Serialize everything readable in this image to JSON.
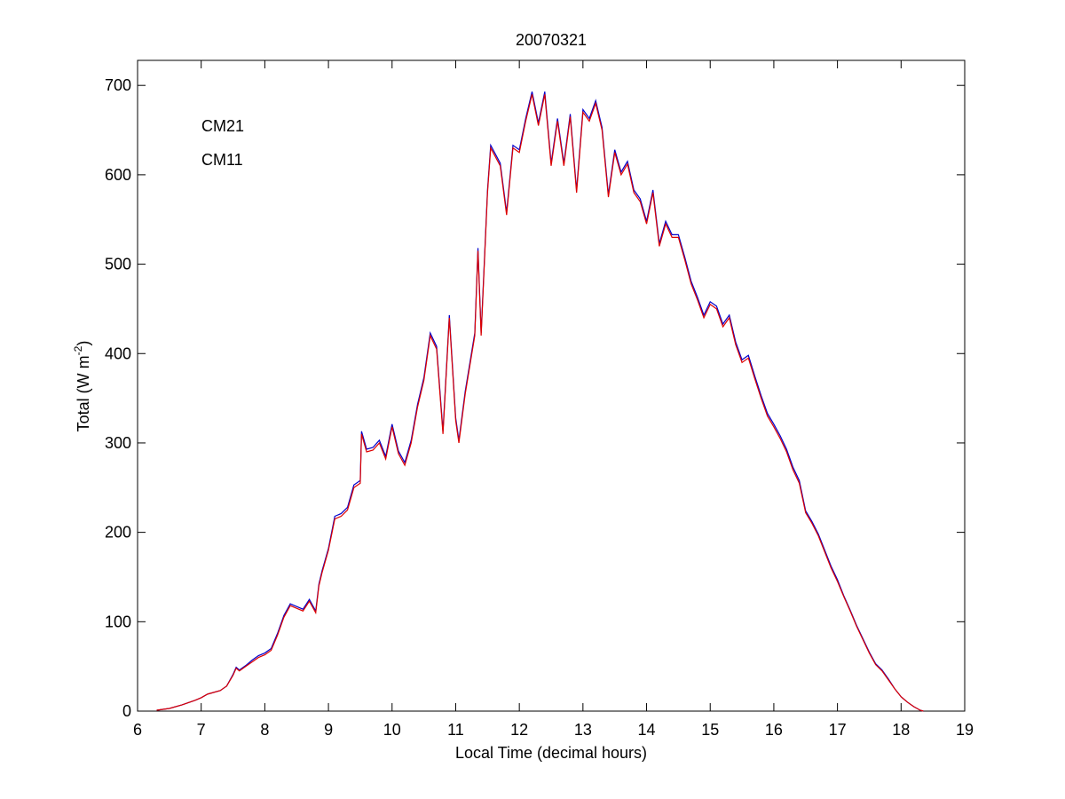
{
  "chart_data": {
    "type": "line",
    "title": "20070321",
    "xlabel": "Local Time (decimal hours)",
    "ylabel": [
      "Total (W m",
      "-2",
      ")"
    ],
    "x": [
      6.3,
      6.5,
      6.7,
      6.9,
      7.0,
      7.1,
      7.3,
      7.4,
      7.5,
      7.55,
      7.6,
      7.7,
      7.8,
      7.9,
      8.0,
      8.1,
      8.2,
      8.3,
      8.4,
      8.5,
      8.6,
      8.7,
      8.8,
      8.85,
      8.9,
      9.0,
      9.1,
      9.2,
      9.3,
      9.4,
      9.5,
      9.52,
      9.6,
      9.7,
      9.8,
      9.9,
      10.0,
      10.1,
      10.2,
      10.3,
      10.4,
      10.5,
      10.6,
      10.7,
      10.8,
      10.9,
      11.0,
      11.05,
      11.15,
      11.3,
      11.35,
      11.4,
      11.5,
      11.55,
      11.7,
      11.8,
      11.9,
      12.0,
      12.1,
      12.2,
      12.3,
      12.4,
      12.5,
      12.6,
      12.7,
      12.8,
      12.9,
      13.0,
      13.1,
      13.2,
      13.3,
      13.4,
      13.5,
      13.6,
      13.7,
      13.8,
      13.9,
      14.0,
      14.1,
      14.2,
      14.3,
      14.4,
      14.5,
      14.6,
      14.7,
      14.8,
      14.9,
      15.0,
      15.1,
      15.2,
      15.3,
      15.4,
      15.5,
      15.6,
      15.7,
      15.8,
      15.9,
      16.0,
      16.1,
      16.2,
      16.3,
      16.4,
      16.5,
      16.6,
      16.7,
      16.8,
      16.9,
      17.0,
      17.1,
      17.2,
      17.3,
      17.4,
      17.5,
      17.6,
      17.7,
      17.8,
      17.9,
      18.0,
      18.1,
      18.2,
      18.3,
      18.35
    ],
    "series": [
      {
        "name": "CM21",
        "color": "#0000cc",
        "values": [
          1,
          3,
          7,
          12,
          15,
          19,
          23,
          28,
          41,
          49,
          46,
          51,
          57,
          62,
          65,
          70,
          87,
          107,
          120,
          117,
          114,
          125,
          112,
          142,
          157,
          182,
          218,
          221,
          228,
          253,
          258,
          313,
          293,
          295,
          303,
          285,
          321,
          291,
          278,
          303,
          343,
          373,
          423,
          408,
          313,
          443,
          328,
          303,
          358,
          423,
          518,
          423,
          583,
          633,
          613,
          558,
          633,
          628,
          663,
          693,
          658,
          693,
          613,
          663,
          613,
          668,
          583,
          673,
          663,
          683,
          653,
          578,
          628,
          603,
          615,
          583,
          573,
          548,
          583,
          523,
          548,
          533,
          533,
          508,
          481,
          463,
          443,
          458,
          453,
          433,
          443,
          413,
          393,
          398,
          375,
          353,
          333,
          321,
          308,
          293,
          273,
          258,
          224,
          212,
          198,
          180,
          162,
          147,
          129,
          113,
          96,
          81,
          66,
          53,
          46,
          36,
          25,
          16,
          10,
          5,
          1,
          0
        ]
      },
      {
        "name": "CM11",
        "color": "#dd0000",
        "values": [
          1,
          3,
          7,
          12,
          15,
          19,
          23,
          28,
          40,
          48,
          45,
          50,
          55,
          60,
          63,
          68,
          85,
          105,
          118,
          115,
          112,
          123,
          110,
          140,
          155,
          180,
          215,
          218,
          225,
          250,
          255,
          310,
          290,
          292,
          300,
          282,
          318,
          288,
          275,
          300,
          340,
          370,
          420,
          405,
          310,
          440,
          325,
          300,
          355,
          420,
          515,
          420,
          580,
          630,
          610,
          555,
          630,
          625,
          660,
          690,
          655,
          690,
          610,
          660,
          610,
          665,
          580,
          670,
          660,
          680,
          650,
          575,
          625,
          600,
          612,
          580,
          570,
          545,
          580,
          520,
          545,
          530,
          530,
          505,
          478,
          460,
          440,
          455,
          450,
          430,
          440,
          410,
          390,
          395,
          372,
          350,
          330,
          318,
          305,
          290,
          270,
          255,
          222,
          210,
          196,
          178,
          160,
          145,
          128,
          112,
          95,
          80,
          65,
          52,
          45,
          35,
          25,
          16,
          10,
          5,
          1,
          0
        ]
      }
    ],
    "xlim": [
      6,
      19
    ],
    "ylim": [
      0,
      728
    ],
    "xticks": [
      6,
      7,
      8,
      9,
      10,
      11,
      12,
      13,
      14,
      15,
      16,
      17,
      18,
      19
    ],
    "yticks": [
      0,
      100,
      200,
      300,
      400,
      500,
      600,
      700
    ],
    "grid": false,
    "legend": "upper left"
  }
}
